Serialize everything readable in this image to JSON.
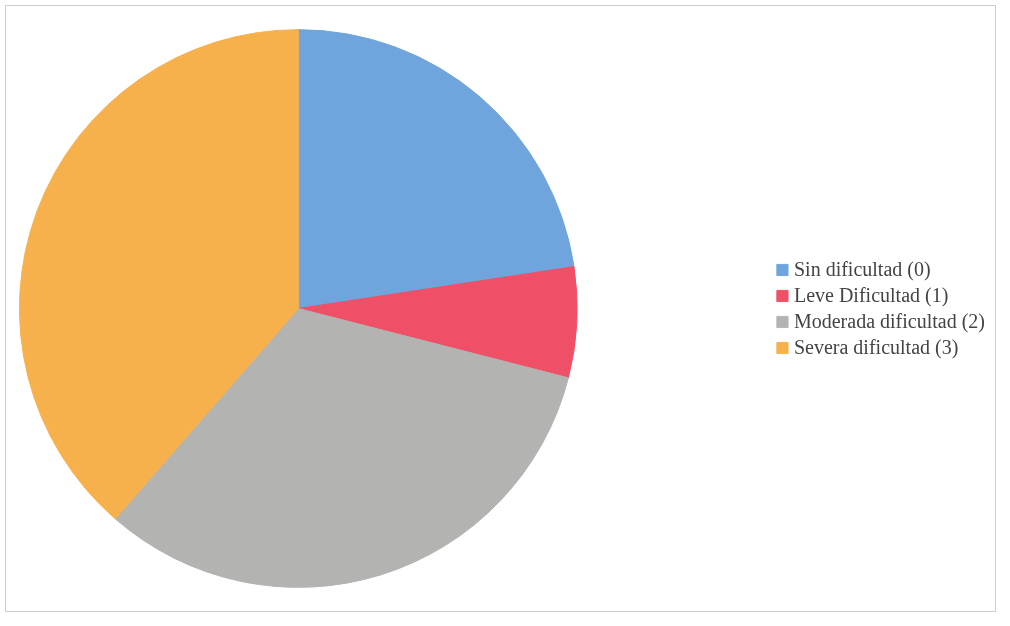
{
  "chart_data": {
    "type": "pie",
    "categories": [
      "Sin dificultad (0)",
      "Leve Dificultad (1)",
      "Moderada dificultad (2)",
      "Severa dificultad (3)"
    ],
    "values": [
      22.6,
      6.4,
      32.4,
      38.6
    ],
    "colors": [
      "#6fa5dc",
      "#ef5068",
      "#b3b3b1",
      "#f7b14c"
    ],
    "legend": "right"
  }
}
